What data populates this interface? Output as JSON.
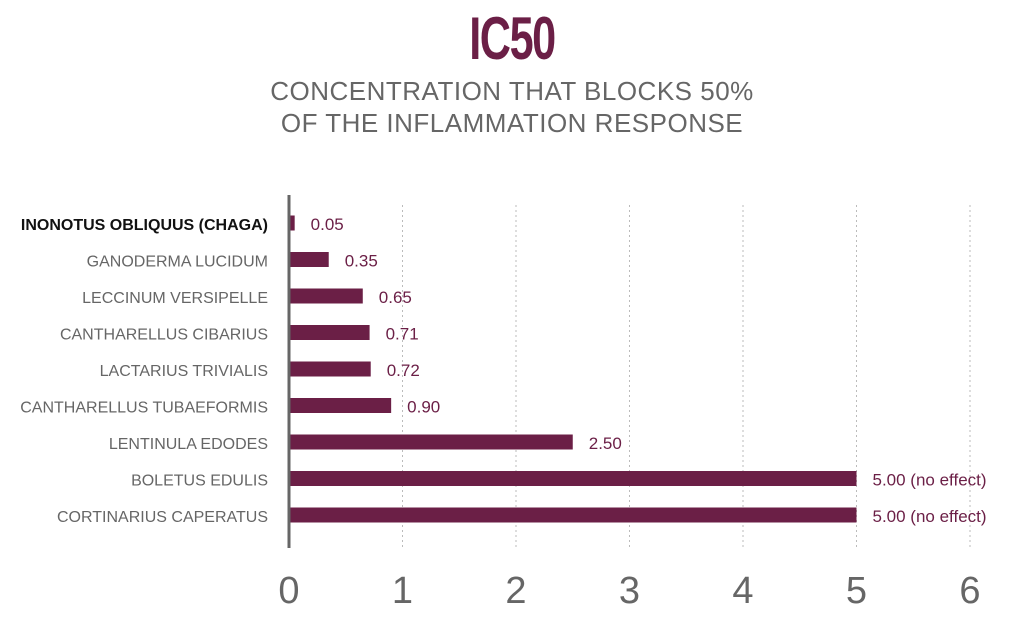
{
  "colors": {
    "bar": "#6b1f46",
    "title": "#6b1f46",
    "label": "#666666",
    "highlight_label": "#111111",
    "axis": "#666666",
    "grid": "#bbbbbb"
  },
  "chart_data": {
    "type": "bar",
    "orientation": "horizontal",
    "title": "IC50",
    "subtitle_lines": [
      "CONCENTRATION THAT BLOCKS 50%",
      "OF THE INFLAMMATION RESPONSE"
    ],
    "categories": [
      "INONOTUS OBLIQUUS (CHAGA)",
      "GANODERMA LUCIDUM",
      "LECCINUM VERSIPELLE",
      "CANTHARELLUS CIBARIUS",
      "LACTARIUS TRIVIALIS",
      "CANTHARELLUS TUBAEFORMIS",
      "LENTINULA EDODES",
      "BOLETUS EDULIS",
      "CORTINARIUS CAPERATUS"
    ],
    "highlighted_category": "INONOTUS OBLIQUUS (CHAGA)",
    "values": [
      0.05,
      0.35,
      0.65,
      0.71,
      0.72,
      0.9,
      2.5,
      5.0,
      5.0
    ],
    "data_labels": [
      "0.05",
      "0.35",
      "0.65",
      "0.71",
      "0.72",
      "0.90",
      "2.50",
      "5.00 (no effect)",
      "5.00 (no effect)"
    ],
    "xlim": [
      0,
      6
    ],
    "xticks": [
      "0",
      "1",
      "2",
      "3",
      "4",
      "5",
      "6"
    ],
    "grid": "vertical dotted",
    "legend": "none"
  }
}
